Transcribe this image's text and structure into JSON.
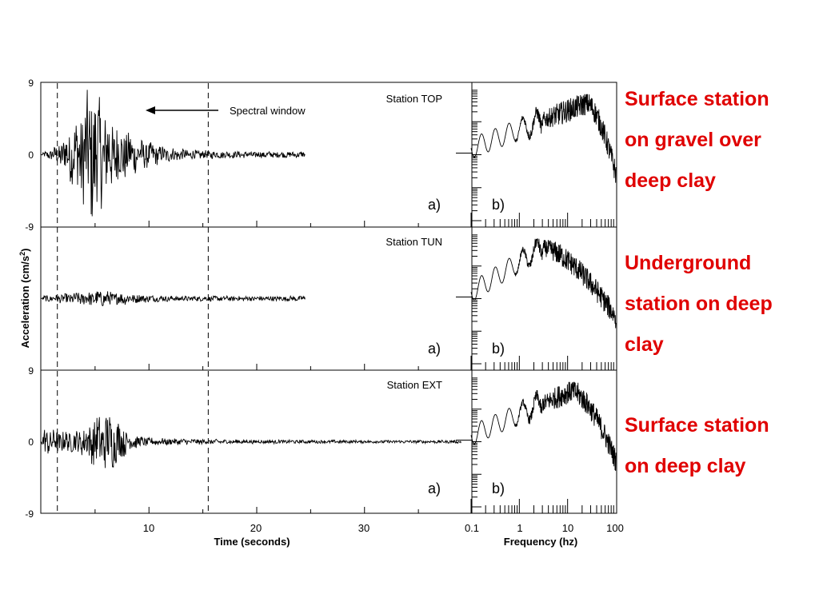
{
  "chart_data": {
    "type": "line",
    "ylabel": "Acceleration (cm/s²)",
    "ylabel_main": "Acceleration (cm/s",
    "ylabel_sup": "2",
    "ylabel_close": ")",
    "time_axis": {
      "xlabel": "Time (seconds)",
      "xlim": [
        0,
        40
      ],
      "ticks": [
        10,
        20,
        30
      ],
      "tick_labels": [
        "10",
        "20",
        "30"
      ],
      "ylim": [
        -9,
        9
      ],
      "ytick_labels": [
        "9",
        "0",
        "-9"
      ]
    },
    "spectral_window": {
      "label": "Spectral window",
      "start_s": 1.5,
      "end_s": 15.5
    },
    "freq_axis": {
      "xlabel": "Frequency (hz)",
      "scale": "log",
      "xlim": [
        0.1,
        100
      ],
      "ticks": [
        0.1,
        1,
        10,
        100
      ],
      "tick_labels": [
        "0.1",
        "1",
        "10",
        "100"
      ]
    },
    "panels": [
      {
        "station": "Station TOP",
        "time_label": "a)",
        "freq_label": "b)",
        "peak_accel": 9,
        "duration_s": 24.5,
        "spectrum_peak_hz": 25
      },
      {
        "station": "Station TUN",
        "time_label": "a)",
        "freq_label": "b)",
        "peak_accel": 0.9,
        "duration_s": 24.5,
        "spectrum_peak_hz": 3
      },
      {
        "station": "Station EXT",
        "time_label": "a)",
        "freq_label": "b)",
        "peak_accel": 3.3,
        "duration_s": 39,
        "spectrum_peak_hz": 12
      }
    ]
  },
  "side_labels": [
    {
      "lines": [
        "Surface station",
        "on gravel over",
        "deep clay"
      ],
      "color": "#e00000"
    },
    {
      "lines": [
        "Underground",
        "station on deep",
        "clay"
      ],
      "color": "#e00000"
    },
    {
      "lines": [
        "Surface station",
        "on deep clay"
      ],
      "color": "#e00000"
    }
  ]
}
